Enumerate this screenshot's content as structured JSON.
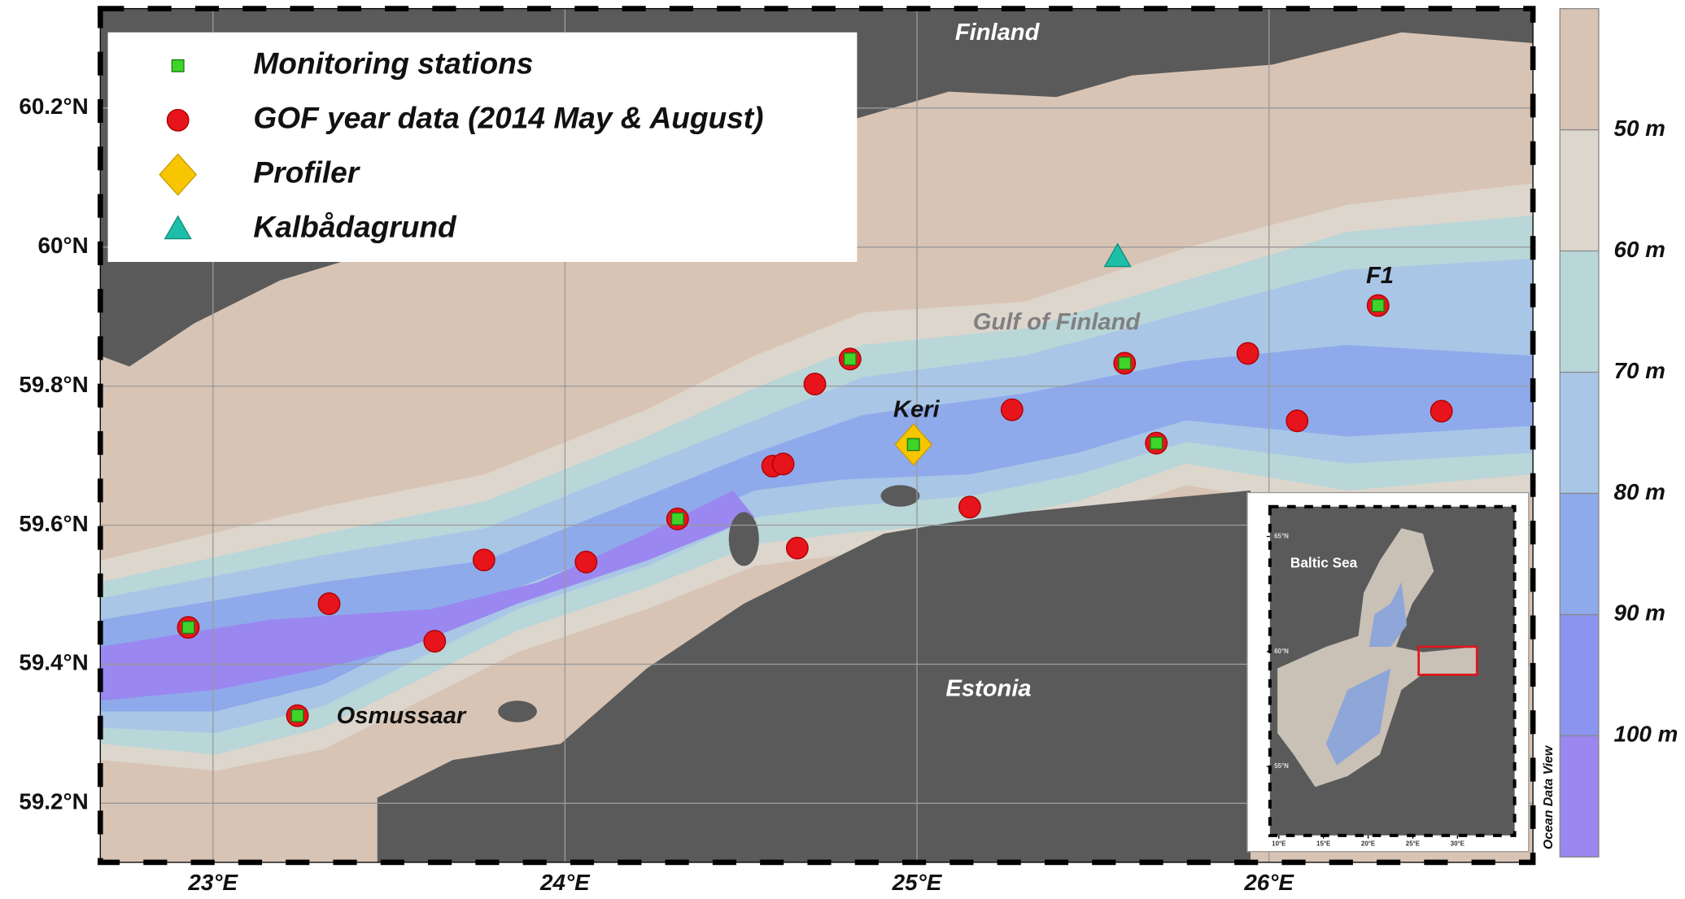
{
  "chart_data": {
    "type": "scatter",
    "xlim": [
      22.68,
      26.75
    ],
    "ylim": [
      59.115,
      60.343
    ],
    "xticks": [
      {
        "value": 23,
        "label": "23°E"
      },
      {
        "value": 24,
        "label": "24°E"
      },
      {
        "value": 25,
        "label": "25°E"
      },
      {
        "value": 26,
        "label": "26°E"
      }
    ],
    "yticks": [
      {
        "value": 59.2,
        "label": "59.2°N"
      },
      {
        "value": 59.4,
        "label": "59.4°N"
      },
      {
        "value": 59.6,
        "label": "59.6°N"
      },
      {
        "value": 59.8,
        "label": "59.8°N"
      },
      {
        "value": 60,
        "label": "60°N"
      },
      {
        "value": 60.2,
        "label": "60.2°N"
      }
    ],
    "grid": true,
    "series": [
      {
        "name": "Monitoring stations",
        "color": "#3fd42a",
        "marker": "square",
        "x": [
          22.93,
          23.24,
          24.32,
          24.81,
          24.99,
          25.59,
          25.68,
          26.31
        ],
        "y": [
          59.453,
          59.326,
          59.609,
          59.839,
          59.716,
          59.833,
          59.718,
          59.916
        ]
      },
      {
        "name": "GOF year data (2014 May & August)",
        "color": "#e8141b",
        "marker": "circle",
        "x": [
          22.93,
          23.24,
          24.32,
          24.81,
          24.99,
          25.59,
          25.68,
          26.31,
          23.33,
          23.63,
          23.77,
          24.06,
          24.59,
          24.62,
          24.66,
          24.71,
          25.27,
          25.15,
          25.94,
          26.08,
          26.49
        ],
        "y": [
          59.453,
          59.326,
          59.609,
          59.839,
          59.716,
          59.833,
          59.718,
          59.916,
          59.487,
          59.433,
          59.55,
          59.547,
          59.685,
          59.688,
          59.567,
          59.803,
          59.766,
          59.626,
          59.847,
          59.75,
          59.764
        ]
      },
      {
        "name": "Profiler",
        "color": "#f7c600",
        "marker": "diamond",
        "x": [
          24.99
        ],
        "y": [
          59.716
        ]
      },
      {
        "name": "Kalbådagrund",
        "color": "#1dbfa8",
        "marker": "triangle",
        "x": [
          25.57
        ],
        "y": [
          59.986
        ]
      }
    ],
    "places": {
      "finland": "Finland",
      "gulf": "Gulf of Finland",
      "estonia": "Estonia",
      "keri": "Keri",
      "f1": "F1",
      "osmussaar": "Osmussaar"
    },
    "colorbar": {
      "lim": [
        40,
        110
      ],
      "ticks": [
        {
          "value": 50,
          "label": "50 m"
        },
        {
          "value": 60,
          "label": "60 m"
        },
        {
          "value": 70,
          "label": "70 m"
        },
        {
          "value": 80,
          "label": "80 m"
        },
        {
          "value": 90,
          "label": "90 m"
        },
        {
          "value": 100,
          "label": "100 m"
        }
      ],
      "colors": [
        "#d8c4b5",
        "#ddd6cd",
        "#b9d6d8",
        "#a9c6e6",
        "#8faaeb",
        "#8b94ef",
        "#9a87ef"
      ],
      "credit": "Ocean Data View"
    },
    "inset": {
      "title": "Baltic Sea",
      "xlim": [
        9,
        36.4
      ],
      "ylim": [
        52,
        66.3
      ],
      "xticks": [
        {
          "value": 10,
          "label": "10°E"
        },
        {
          "value": 15,
          "label": "15°E"
        },
        {
          "value": 20,
          "label": "20°E"
        },
        {
          "value": 25,
          "label": "25°E"
        },
        {
          "value": 30,
          "label": "30°E"
        }
      ],
      "yticks": [
        {
          "value": 55,
          "label": "55°N"
        },
        {
          "value": 60,
          "label": "60°N"
        },
        {
          "value": 65,
          "label": "65°N"
        }
      ]
    }
  }
}
